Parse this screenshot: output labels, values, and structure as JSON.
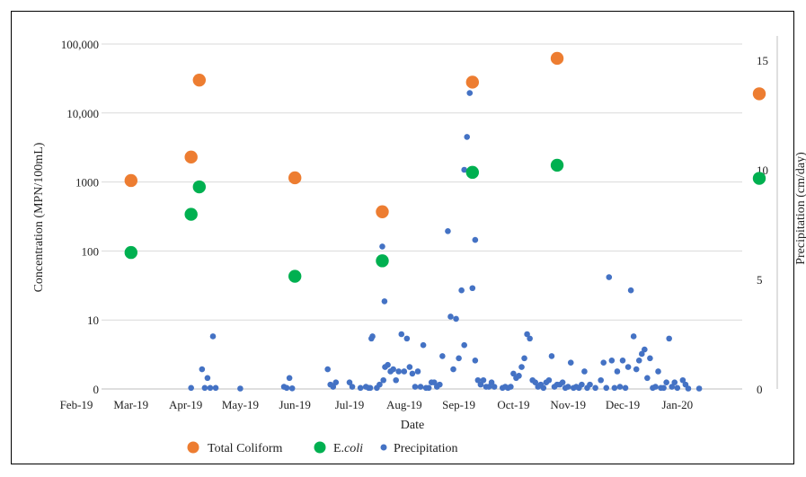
{
  "chart_data": {
    "type": "scatter",
    "xlabel": "Date",
    "ylabel": "Concentration (MPN/100mL)",
    "y2label": "Precipitation (cm/day)",
    "y_scale": "log",
    "x_ticks": [
      "Feb-19",
      "Mar-19",
      "Apr-19",
      "May-19",
      "Jun-19",
      "Jul-19",
      "Aug-19",
      "Sep-19",
      "Oct-19",
      "Nov-19",
      "Dec-19",
      "Jan-20"
    ],
    "y_ticks": [
      {
        "value": 1,
        "label": "0"
      },
      {
        "value": 10,
        "label": "10"
      },
      {
        "value": 100,
        "label": "100"
      },
      {
        "value": 1000,
        "label": "1000"
      },
      {
        "value": 10000,
        "label": "10,000"
      },
      {
        "value": 100000,
        "label": "100,000"
      }
    ],
    "y2_ticks": [
      0,
      5,
      10,
      15
    ],
    "y2lim": [
      0,
      15
    ],
    "x_range_months": [
      0,
      12.6
    ],
    "legend": {
      "position": "bottom",
      "items": [
        {
          "label": "Total Coliform",
          "color": "#ED7D31"
        },
        {
          "label_main": "E.",
          "label_italic": "coli",
          "color": "#00B050"
        },
        {
          "label": "Precipitation",
          "color": "#4472C4"
        }
      ]
    },
    "series": [
      {
        "name": "Total Coliform",
        "color": "#ED7D31",
        "axis": "left",
        "points": [
          [
            1.0,
            1050
          ],
          [
            2.1,
            2300
          ],
          [
            2.25,
            30000
          ],
          [
            4.0,
            1150
          ],
          [
            5.6,
            370
          ],
          [
            7.25,
            28000
          ],
          [
            8.8,
            62000
          ],
          [
            12.5,
            19000
          ]
        ]
      },
      {
        "name": "E.coli",
        "color": "#00B050",
        "axis": "left",
        "points": [
          [
            1.0,
            95
          ],
          [
            2.1,
            340
          ],
          [
            2.25,
            850
          ],
          [
            4.0,
            43
          ],
          [
            5.6,
            72
          ],
          [
            7.25,
            1380
          ],
          [
            8.8,
            1750
          ],
          [
            12.5,
            1130
          ]
        ]
      },
      {
        "name": "Precipitation",
        "color": "#4472C4",
        "axis": "right",
        "points": [
          [
            2.1,
            0.05
          ],
          [
            2.3,
            0.9
          ],
          [
            2.35,
            0.05
          ],
          [
            2.4,
            0.5
          ],
          [
            2.45,
            0.05
          ],
          [
            2.5,
            2.4
          ],
          [
            2.55,
            0.05
          ],
          [
            3.0,
            0.02
          ],
          [
            3.8,
            0.1
          ],
          [
            3.85,
            0.05
          ],
          [
            3.9,
            0.5
          ],
          [
            3.95,
            0.03
          ],
          [
            4.6,
            0.9
          ],
          [
            4.65,
            0.2
          ],
          [
            4.7,
            0.1
          ],
          [
            4.75,
            0.3
          ],
          [
            5.0,
            0.3
          ],
          [
            5.05,
            0.1
          ],
          [
            5.2,
            0.05
          ],
          [
            5.3,
            0.1
          ],
          [
            5.35,
            0.05
          ],
          [
            5.38,
            0.05
          ],
          [
            5.4,
            2.3
          ],
          [
            5.42,
            2.4
          ],
          [
            5.5,
            0.05
          ],
          [
            5.55,
            0.2
          ],
          [
            5.6,
            6.5
          ],
          [
            5.62,
            0.4
          ],
          [
            5.64,
            4.0
          ],
          [
            5.65,
            1.0
          ],
          [
            5.7,
            1.1
          ],
          [
            5.75,
            0.8
          ],
          [
            5.8,
            0.9
          ],
          [
            5.85,
            0.4
          ],
          [
            5.9,
            0.8
          ],
          [
            5.95,
            2.5
          ],
          [
            6.0,
            0.8
          ],
          [
            6.05,
            2.3
          ],
          [
            6.1,
            1.0
          ],
          [
            6.15,
            0.7
          ],
          [
            6.2,
            0.1
          ],
          [
            6.25,
            0.8
          ],
          [
            6.3,
            0.1
          ],
          [
            6.35,
            2.0
          ],
          [
            6.4,
            0.05
          ],
          [
            6.45,
            0.05
          ],
          [
            6.5,
            0.3
          ],
          [
            6.55,
            0.3
          ],
          [
            6.6,
            0.1
          ],
          [
            6.65,
            0.2
          ],
          [
            6.7,
            1.5
          ],
          [
            6.8,
            7.2
          ],
          [
            6.85,
            3.3
          ],
          [
            6.9,
            0.9
          ],
          [
            6.95,
            3.2
          ],
          [
            7.0,
            1.4
          ],
          [
            7.05,
            4.5
          ],
          [
            7.1,
            2.0
          ],
          [
            7.1,
            10.0
          ],
          [
            7.15,
            11.5
          ],
          [
            7.2,
            13.5
          ],
          [
            7.25,
            4.6
          ],
          [
            7.3,
            6.8
          ],
          [
            7.3,
            1.3
          ],
          [
            7.35,
            0.4
          ],
          [
            7.4,
            0.2
          ],
          [
            7.45,
            0.4
          ],
          [
            7.5,
            0.1
          ],
          [
            7.55,
            0.1
          ],
          [
            7.6,
            0.3
          ],
          [
            7.65,
            0.1
          ],
          [
            7.8,
            0.05
          ],
          [
            7.85,
            0.1
          ],
          [
            7.9,
            0.05
          ],
          [
            7.95,
            0.1
          ],
          [
            8.0,
            0.7
          ],
          [
            8.05,
            0.5
          ],
          [
            8.1,
            0.6
          ],
          [
            8.15,
            1.0
          ],
          [
            8.2,
            1.4
          ],
          [
            8.25,
            2.5
          ],
          [
            8.3,
            2.3
          ],
          [
            8.35,
            0.4
          ],
          [
            8.4,
            0.3
          ],
          [
            8.45,
            0.1
          ],
          [
            8.5,
            0.2
          ],
          [
            8.55,
            0.05
          ],
          [
            8.6,
            0.3
          ],
          [
            8.65,
            0.4
          ],
          [
            8.7,
            1.5
          ],
          [
            8.75,
            0.1
          ],
          [
            8.8,
            0.2
          ],
          [
            8.85,
            0.2
          ],
          [
            8.9,
            0.3
          ],
          [
            8.95,
            0.05
          ],
          [
            9.0,
            0.1
          ],
          [
            9.05,
            1.2
          ],
          [
            9.1,
            0.05
          ],
          [
            9.15,
            0.1
          ],
          [
            9.2,
            0.05
          ],
          [
            9.25,
            0.2
          ],
          [
            9.3,
            0.8
          ],
          [
            9.35,
            0.05
          ],
          [
            9.4,
            0.2
          ],
          [
            9.5,
            0.05
          ],
          [
            9.6,
            0.4
          ],
          [
            9.65,
            1.2
          ],
          [
            9.7,
            0.05
          ],
          [
            9.75,
            5.1
          ],
          [
            9.8,
            1.3
          ],
          [
            9.85,
            0.05
          ],
          [
            9.9,
            0.8
          ],
          [
            9.95,
            0.1
          ],
          [
            10.0,
            1.3
          ],
          [
            10.05,
            0.05
          ],
          [
            10.1,
            1.0
          ],
          [
            10.15,
            4.5
          ],
          [
            10.2,
            2.4
          ],
          [
            10.25,
            0.9
          ],
          [
            10.3,
            1.3
          ],
          [
            10.35,
            1.6
          ],
          [
            10.4,
            1.8
          ],
          [
            10.45,
            0.5
          ],
          [
            10.5,
            1.4
          ],
          [
            10.55,
            0.05
          ],
          [
            10.6,
            0.1
          ],
          [
            10.65,
            0.8
          ],
          [
            10.7,
            0.05
          ],
          [
            10.75,
            0.05
          ],
          [
            10.8,
            0.3
          ],
          [
            10.85,
            2.3
          ],
          [
            10.9,
            0.1
          ],
          [
            10.95,
            0.3
          ],
          [
            11.0,
            0.05
          ],
          [
            11.1,
            0.4
          ],
          [
            11.15,
            0.2
          ],
          [
            11.2,
            0.02
          ],
          [
            11.4,
            0.02
          ]
        ]
      }
    ]
  }
}
